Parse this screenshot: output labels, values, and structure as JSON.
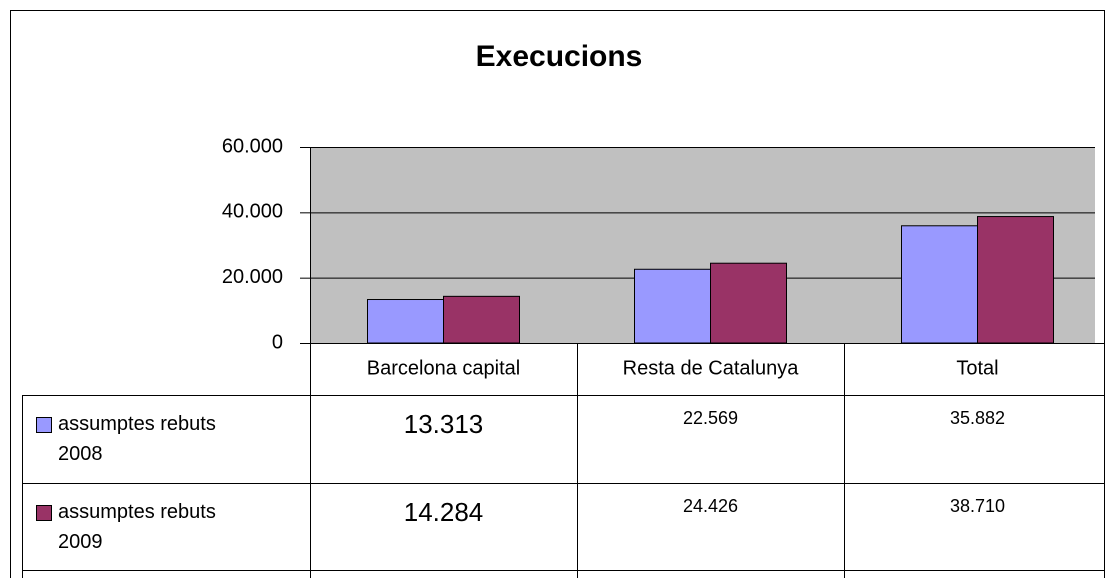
{
  "chart_data": {
    "type": "bar",
    "title": "Execucions",
    "categories": [
      "Barcelona capital",
      "Resta de Catalunya",
      "Total"
    ],
    "series": [
      {
        "name": "assumptes rebuts 2008",
        "color": "#9999ff",
        "values": [
          13313,
          22569,
          35882
        ],
        "value_labels": [
          "13.313",
          "22.569",
          "35.882"
        ]
      },
      {
        "name": "assumptes rebuts 2009",
        "color": "#993366",
        "values": [
          14284,
          24426,
          38710
        ],
        "value_labels": [
          "14.284",
          "24.426",
          "38.710"
        ]
      }
    ],
    "ylim": [
      0,
      60000
    ],
    "yticks": [
      0,
      {
        "value": 20000,
        "label": "20.000"
      },
      {
        "value": 40000,
        "label": "40.000"
      },
      {
        "value": 60000,
        "label": "60.000"
      }
    ],
    "grid": true,
    "plot_background": "#c0c0c0"
  }
}
